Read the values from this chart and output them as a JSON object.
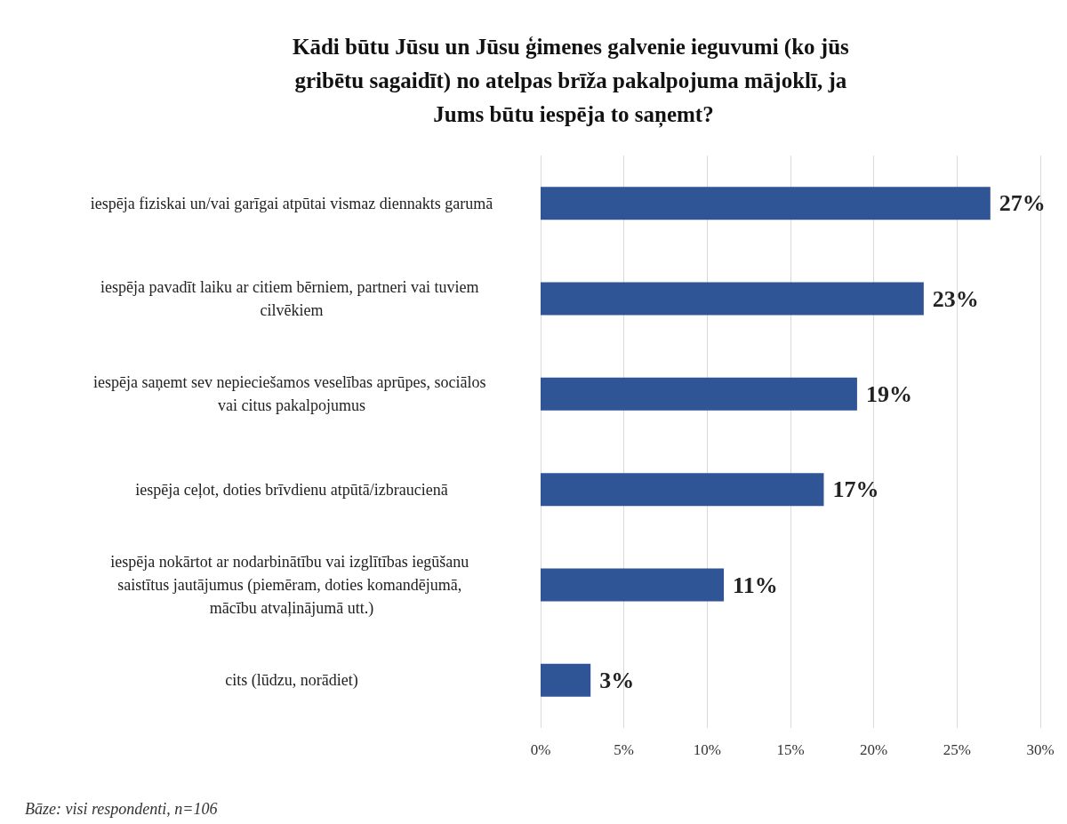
{
  "chart_data": {
    "type": "bar",
    "orientation": "horizontal",
    "title": "Kādi būtu Jūsu un Jūsu ģimenes galvenie ieguvumi (ko jūs gribētu sagaidīt) no atelpas brīža pakalpojuma mājoklī, ja Jums būtu iespēja to saņemt?",
    "categories": [
      "iespēja fiziskai un/vai garīgai atpūtai vismaz diennakts garumā",
      "iespēja pavadīt laiku ar citiem bērniem, partneri vai tuviem cilvēkiem",
      "iespēja saņemt sev nepieciešamos veselības aprūpes, sociālos vai citus pakalpojumus",
      "iespēja ceļot, doties brīvdienu atpūtā/izbraucienā",
      "iespēja nokārtot ar nodarbinātību vai izglītības iegūšanu saistītus jautājumus (piemēram, doties komandējumā, mācību atvaļinājumā utt.)",
      "cits (lūdzu, norādiet)"
    ],
    "values": [
      27,
      23,
      19,
      17,
      11,
      3
    ],
    "value_labels": [
      "27%",
      "23%",
      "19%",
      "17%",
      "11%",
      "3%"
    ],
    "color": "#2f5597",
    "xlim": [
      0,
      30
    ],
    "xticks": [
      {
        "value": 0,
        "label": "0%"
      },
      {
        "value": 5,
        "label": "5%"
      },
      {
        "value": 10,
        "label": "10%"
      },
      {
        "value": 15,
        "label": "15%"
      },
      {
        "value": 20,
        "label": "20%"
      },
      {
        "value": 25,
        "label": "25%"
      },
      {
        "value": 30,
        "label": "30%"
      }
    ],
    "grid": "x",
    "annotations": [
      "Bāze: visi respondenti, n=106"
    ]
  }
}
